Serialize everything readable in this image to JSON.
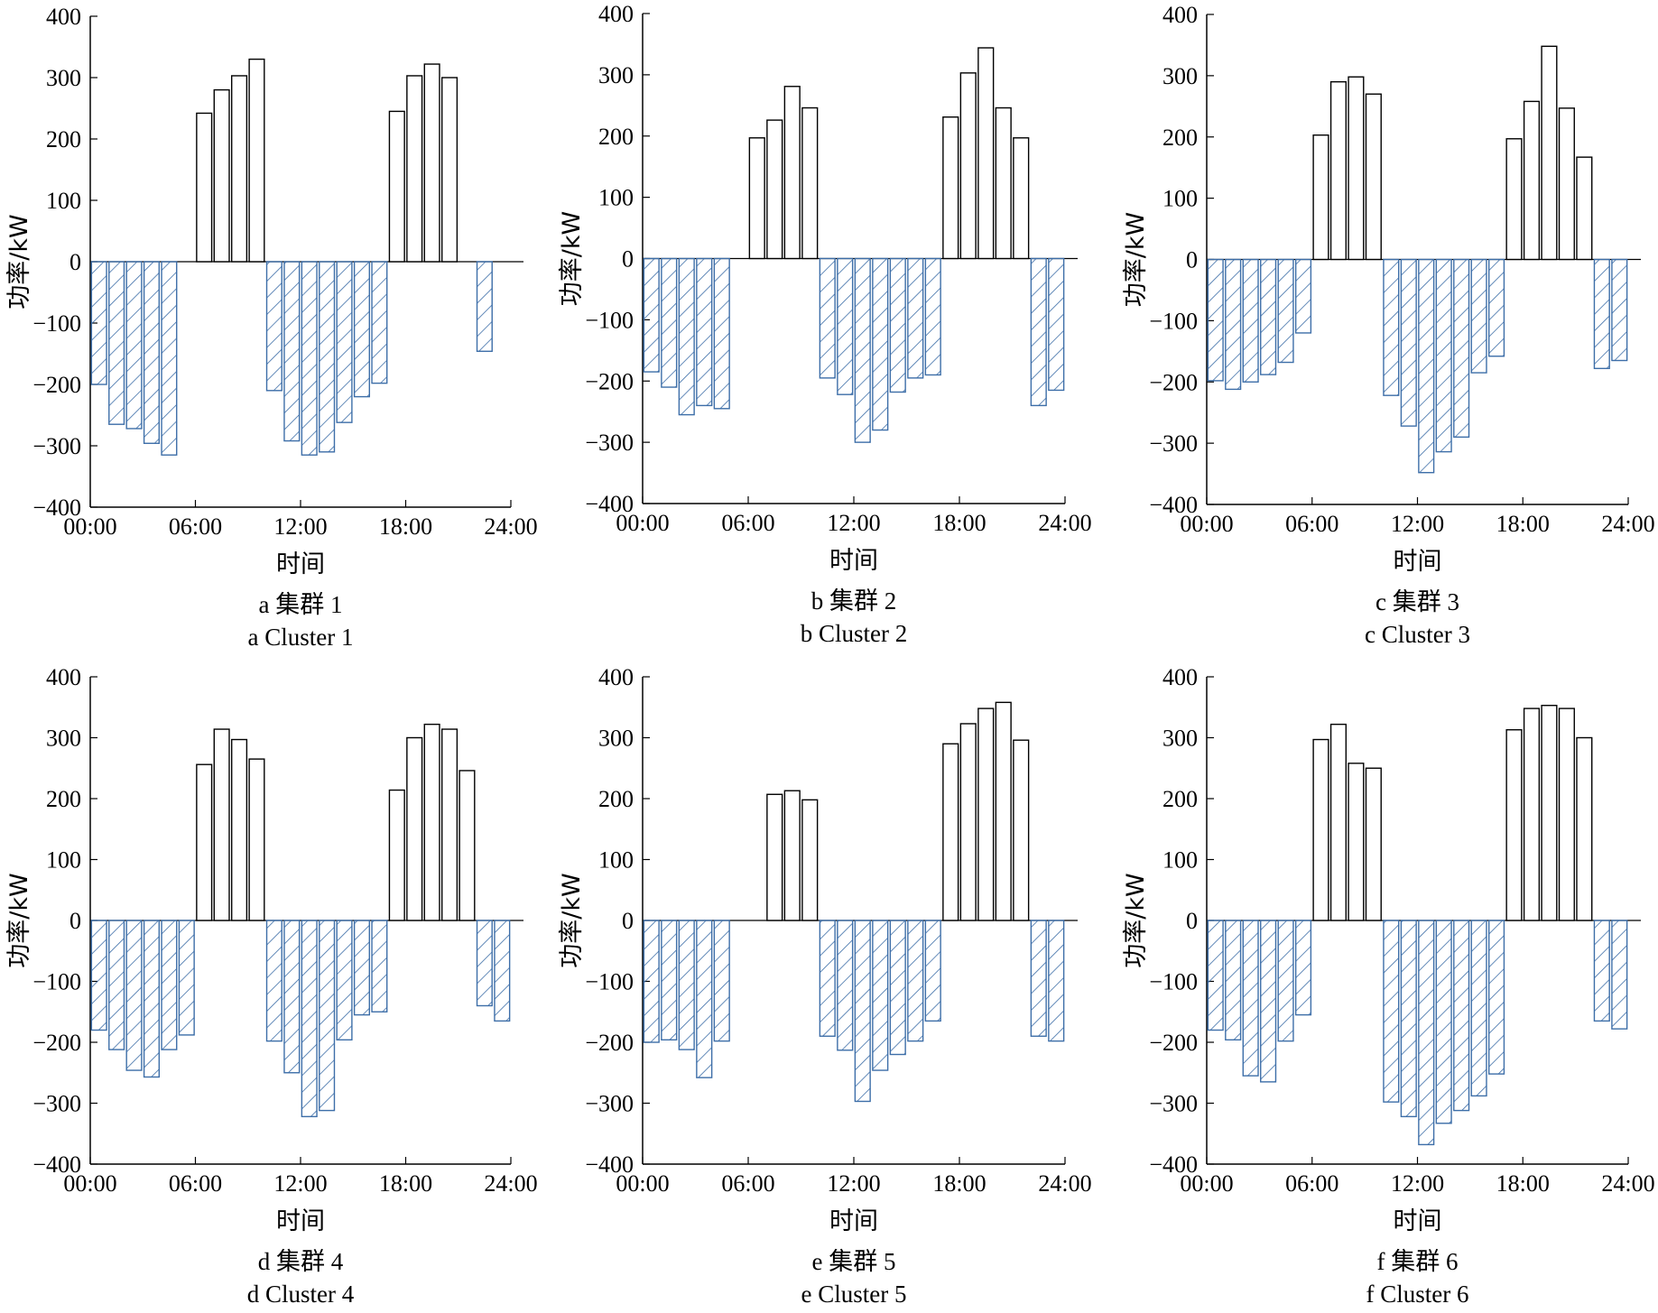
{
  "colors": {
    "positive_fill": "#ffffff",
    "negative_stroke": "#3d6ea8",
    "axis": "#000000"
  },
  "chart_data": [
    {
      "type": "bar",
      "caption_cn": "a  集群 1",
      "caption_en": "a  Cluster 1",
      "xlabel": "时间",
      "ylabel": "功率/kW",
      "ylim": [
        -400,
        400
      ],
      "yticks": [
        "400",
        "300",
        "200",
        "100",
        "0",
        "-100",
        "-200",
        "-300",
        "-400"
      ],
      "xticks": [
        "00:00",
        "06:00",
        "12:00",
        "18:00",
        "24:00"
      ],
      "hours": [
        1,
        2,
        3,
        4,
        5,
        6,
        7,
        8,
        9,
        10,
        11,
        12,
        13,
        14,
        15,
        16,
        17,
        18,
        19,
        20,
        21,
        22,
        23,
        24
      ],
      "values": [
        -200,
        -265,
        -272,
        -296,
        -315,
        0,
        242,
        280,
        303,
        330,
        -210,
        -292,
        -315,
        -310,
        -262,
        -220,
        -198,
        245,
        303,
        322,
        300,
        0,
        -146,
        0
      ]
    },
    {
      "type": "bar",
      "caption_cn": "b 集群 2",
      "caption_en": "b Cluster 2",
      "xlabel": "时间",
      "ylabel": "功率/kW",
      "ylim": [
        -400,
        400
      ],
      "yticks": [
        "400",
        "300",
        "200",
        "100",
        "0",
        "-100",
        "-200",
        "-300",
        "-400"
      ],
      "xticks": [
        "00:00",
        "06:00",
        "12:00",
        "18:00",
        "24:00"
      ],
      "hours": [
        1,
        2,
        3,
        4,
        5,
        6,
        7,
        8,
        9,
        10,
        11,
        12,
        13,
        14,
        15,
        16,
        17,
        18,
        19,
        20,
        21,
        22,
        23,
        24
      ],
      "values": [
        -185,
        -210,
        -255,
        -240,
        -245,
        0,
        197,
        226,
        281,
        246,
        -195,
        -222,
        -300,
        -280,
        -218,
        -195,
        -190,
        231,
        303,
        344,
        246,
        197,
        -240,
        -215
      ]
    },
    {
      "type": "bar",
      "caption_cn": "c  集群 3",
      "caption_en": "c  Cluster 3",
      "xlabel": "时间",
      "ylabel": "功率/kW",
      "ylim": [
        -400,
        400
      ],
      "yticks": [
        "400",
        "300",
        "200",
        "100",
        "0",
        "-100",
        "-200",
        "-300",
        "-400"
      ],
      "xticks": [
        "00:00",
        "06:00",
        "12:00",
        "18:00",
        "24:00"
      ],
      "hours": [
        1,
        2,
        3,
        4,
        5,
        6,
        7,
        8,
        9,
        10,
        11,
        12,
        13,
        14,
        15,
        16,
        17,
        18,
        19,
        20,
        21,
        22,
        23,
        24
      ],
      "values": [
        -198,
        -212,
        -200,
        -188,
        -168,
        -120,
        203,
        290,
        298,
        270,
        -222,
        -272,
        -348,
        -314,
        -290,
        -185,
        -158,
        197,
        258,
        348,
        247,
        167,
        -178,
        -165
      ]
    },
    {
      "type": "bar",
      "caption_cn": "d  集群 4",
      "caption_en": "d  Cluster 4",
      "xlabel": "时间",
      "ylabel": "功率/kW",
      "ylim": [
        -400,
        400
      ],
      "yticks": [
        "400",
        "300",
        "200",
        "100",
        "0",
        "-100",
        "-200",
        "-300",
        "-400"
      ],
      "xticks": [
        "00:00",
        "06:00",
        "12:00",
        "18:00",
        "24:00"
      ],
      "hours": [
        1,
        2,
        3,
        4,
        5,
        6,
        7,
        8,
        9,
        10,
        11,
        12,
        13,
        14,
        15,
        16,
        17,
        18,
        19,
        20,
        21,
        22,
        23,
        24
      ],
      "values": [
        -180,
        -212,
        -246,
        -257,
        -212,
        -188,
        256,
        314,
        297,
        265,
        -198,
        -250,
        -322,
        -312,
        -196,
        -155,
        -150,
        214,
        300,
        322,
        314,
        246,
        -140,
        -165
      ]
    },
    {
      "type": "bar",
      "caption_cn": "e  集群 5",
      "caption_en": "e  Cluster 5",
      "xlabel": "时间",
      "ylabel": "功率/kW",
      "ylim": [
        -400,
        400
      ],
      "yticks": [
        "400",
        "300",
        "200",
        "100",
        "0",
        "-100",
        "-200",
        "-300",
        "-400"
      ],
      "xticks": [
        "00:00",
        "06:00",
        "12:00",
        "18:00",
        "24:00"
      ],
      "hours": [
        1,
        2,
        3,
        4,
        5,
        6,
        7,
        8,
        9,
        10,
        11,
        12,
        13,
        14,
        15,
        16,
        17,
        18,
        19,
        20,
        21,
        22,
        23,
        24
      ],
      "values": [
        -200,
        -196,
        -212,
        -258,
        -198,
        0,
        0,
        207,
        213,
        198,
        -190,
        -213,
        -297,
        -246,
        -220,
        -198,
        -165,
        290,
        323,
        348,
        358,
        296,
        -190,
        -198
      ]
    },
    {
      "type": "bar",
      "caption_cn": "f  集群 6",
      "caption_en": "f  Cluster 6",
      "xlabel": "时间",
      "ylabel": "功率/kW",
      "ylim": [
        -400,
        400
      ],
      "yticks": [
        "400",
        "300",
        "200",
        "100",
        "0",
        "-100",
        "-200",
        "-300",
        "-400"
      ],
      "xticks": [
        "00:00",
        "06:00",
        "12:00",
        "18:00",
        "24:00"
      ],
      "hours": [
        1,
        2,
        3,
        4,
        5,
        6,
        7,
        8,
        9,
        10,
        11,
        12,
        13,
        14,
        15,
        16,
        17,
        18,
        19,
        20,
        21,
        22,
        23,
        24
      ],
      "values": [
        -180,
        -196,
        -255,
        -265,
        -198,
        -155,
        297,
        322,
        258,
        250,
        -298,
        -322,
        -368,
        -333,
        -312,
        -288,
        -252,
        313,
        348,
        353,
        348,
        300,
        -165,
        -178
      ]
    }
  ]
}
